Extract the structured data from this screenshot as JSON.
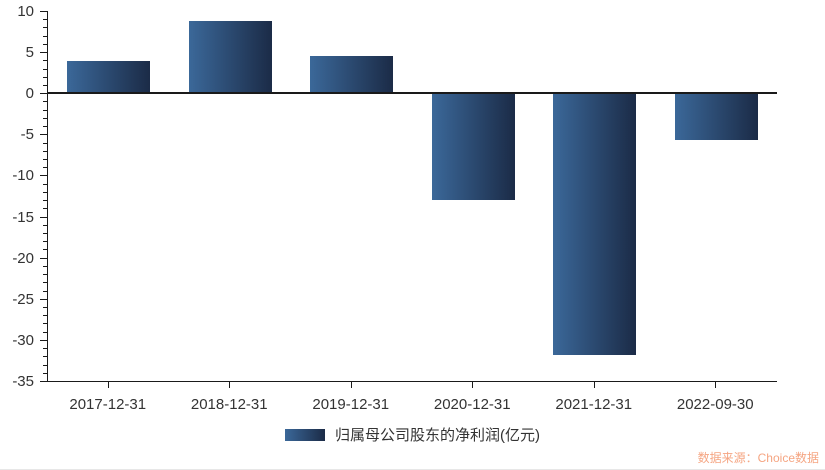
{
  "chart_data": {
    "type": "bar",
    "title": "",
    "xlabel": "",
    "ylabel": "",
    "categories": [
      "2017-12-31",
      "2018-12-31",
      "2019-12-31",
      "2020-12-31",
      "2021-12-31",
      "2022-09-30"
    ],
    "series": [
      {
        "name": "归属母公司股东的净利润(亿元)",
        "values": [
          3.9,
          8.8,
          4.5,
          -13.0,
          -31.8,
          -5.7
        ]
      }
    ],
    "ylim": [
      -35,
      10
    ],
    "y_major_step": 5,
    "y_minor_step": 1,
    "y_tick_labels": [
      "10",
      "5",
      "0",
      "-5",
      "-10",
      "-15",
      "-20",
      "-25",
      "-30",
      "-35"
    ],
    "grid": false,
    "legend_position": "bottom",
    "colors": {
      "bar_gradient_left": "#3b6899",
      "bar_gradient_right": "#1b2b47",
      "axis": "#1a1a1a",
      "tick_text": "#333333"
    }
  },
  "legend": {
    "label": "归属母公司股东的净利润(亿元)"
  },
  "source": {
    "label": "数据来源：Choice数据",
    "color": "#f5a582"
  }
}
